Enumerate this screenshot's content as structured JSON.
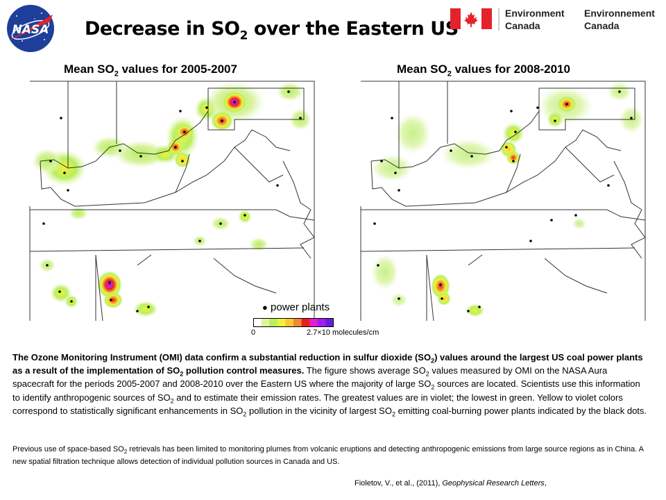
{
  "header": {
    "title_prefix": "Decrease in SO",
    "title_sub": "2",
    "title_suffix": " over the Eastern US",
    "nasa_logo_text": "NASA",
    "ec_en_1": "Environment",
    "ec_en_2": "Canada",
    "ec_fr_1": "Environnement",
    "ec_fr_2": "Canada"
  },
  "panels": [
    {
      "title_prefix": "Mean SO",
      "title_sub": "2",
      "title_suffix": " values for 2005-2007"
    },
    {
      "title_prefix": "Mean SO",
      "title_sub": "2",
      "title_suffix": " values for 2008-2010"
    }
  ],
  "legend": {
    "marker_label": "power plants",
    "min_label": "0",
    "max_label": "2.7×10  molecules/cm",
    "colors": [
      "#ffffff",
      "#ddf5a0",
      "#b8ef60",
      "#f2f03c",
      "#f7c83a",
      "#f08a2c",
      "#e8201c",
      "#e61cd0",
      "#a01cf0",
      "#6a1cd8"
    ]
  },
  "description": {
    "bold_1": "The Ozone Monitoring Instrument (OMI) data confirm a substantial reduction in sulfur dioxide (SO",
    "bold_sub_1": "2",
    "bold_2": ") values around the largest US coal power plants as a result of the implementation of SO",
    "bold_sub_2": "2",
    "bold_3": " pollution control measures.",
    "t1": " The figure shows average SO",
    "s1": "2",
    "t2": " values measured by OMI on the NASA Aura spacecraft for the periods 2005-2007 and 2008-2010 over the Eastern US where the majority of large SO",
    "s2": "2",
    "t3": " sources are located. Scientists use this information to identify anthropogenic sources of SO",
    "s3": "2",
    "t4": " and to estimate their emission rates. The greatest values are in violet; the lowest in green. Yellow to violet colors correspond to statistically significant enhancements in SO",
    "s4": "2",
    "t5": " pollution in the vicinity of largest SO",
    "s5": "2",
    "t6": " emitting coal-burning power plants indicated by the black dots."
  },
  "previous": {
    "p1": "Previous use of space-based SO",
    "s1": "2",
    "p2": " retrievals has been limited to monitoring plumes from volcanic eruptions and detecting anthropogenic emissions from large source regions as in China.  A new spatial filtration technique allows detection of individual pollution sources in Canada and US."
  },
  "citation": {
    "authors": "Fioletov, V., et al., (2011), ",
    "journal": "Geophysical Research Letters",
    "tail": ","
  }
}
